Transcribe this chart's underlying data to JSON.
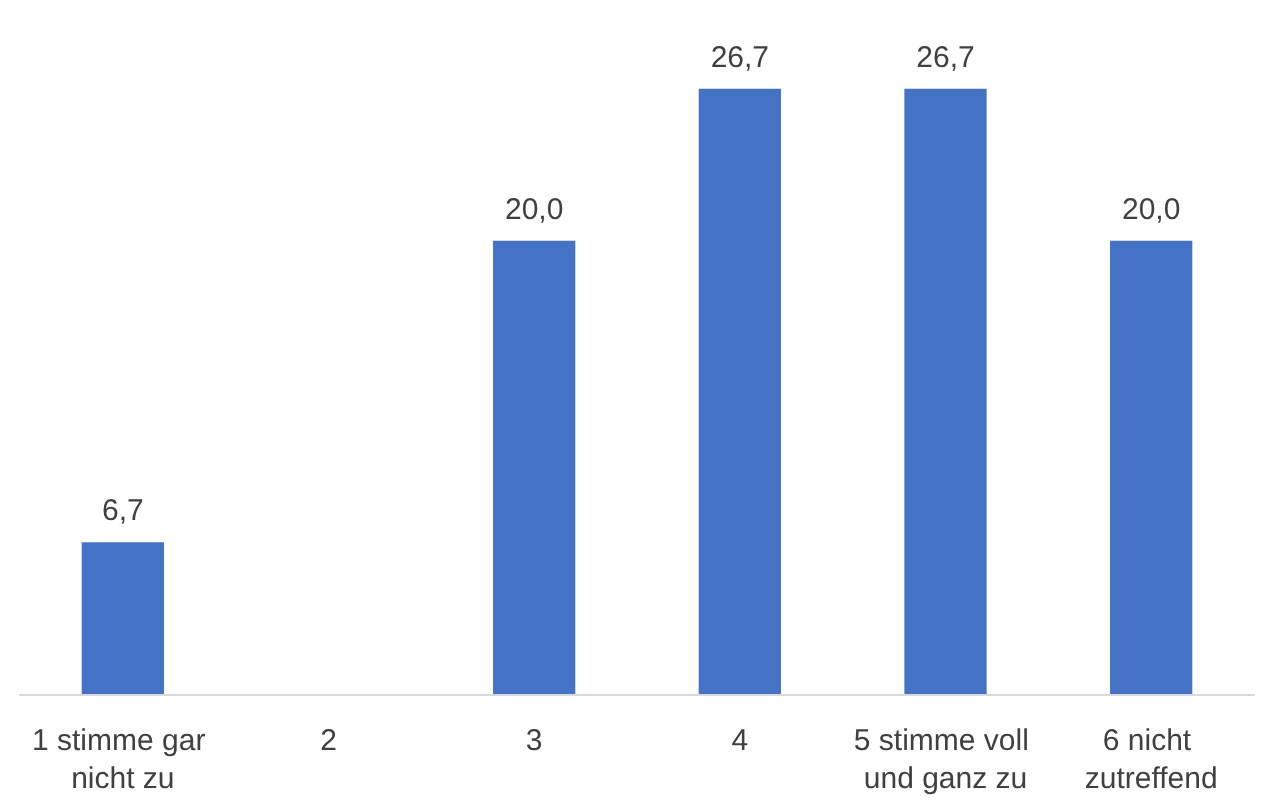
{
  "chart_data": {
    "type": "bar",
    "categories": [
      "1 stimme gar nicht zu",
      "2",
      "3",
      "4",
      "5 stimme voll und ganz zu",
      "6 nicht zutreffend"
    ],
    "values": [
      6.7,
      null,
      20.0,
      26.7,
      26.7,
      20.0
    ],
    "value_labels": [
      "6,7",
      null,
      "20,0",
      "26,7",
      "26,7",
      "20,0"
    ],
    "color": "#4472c4"
  }
}
